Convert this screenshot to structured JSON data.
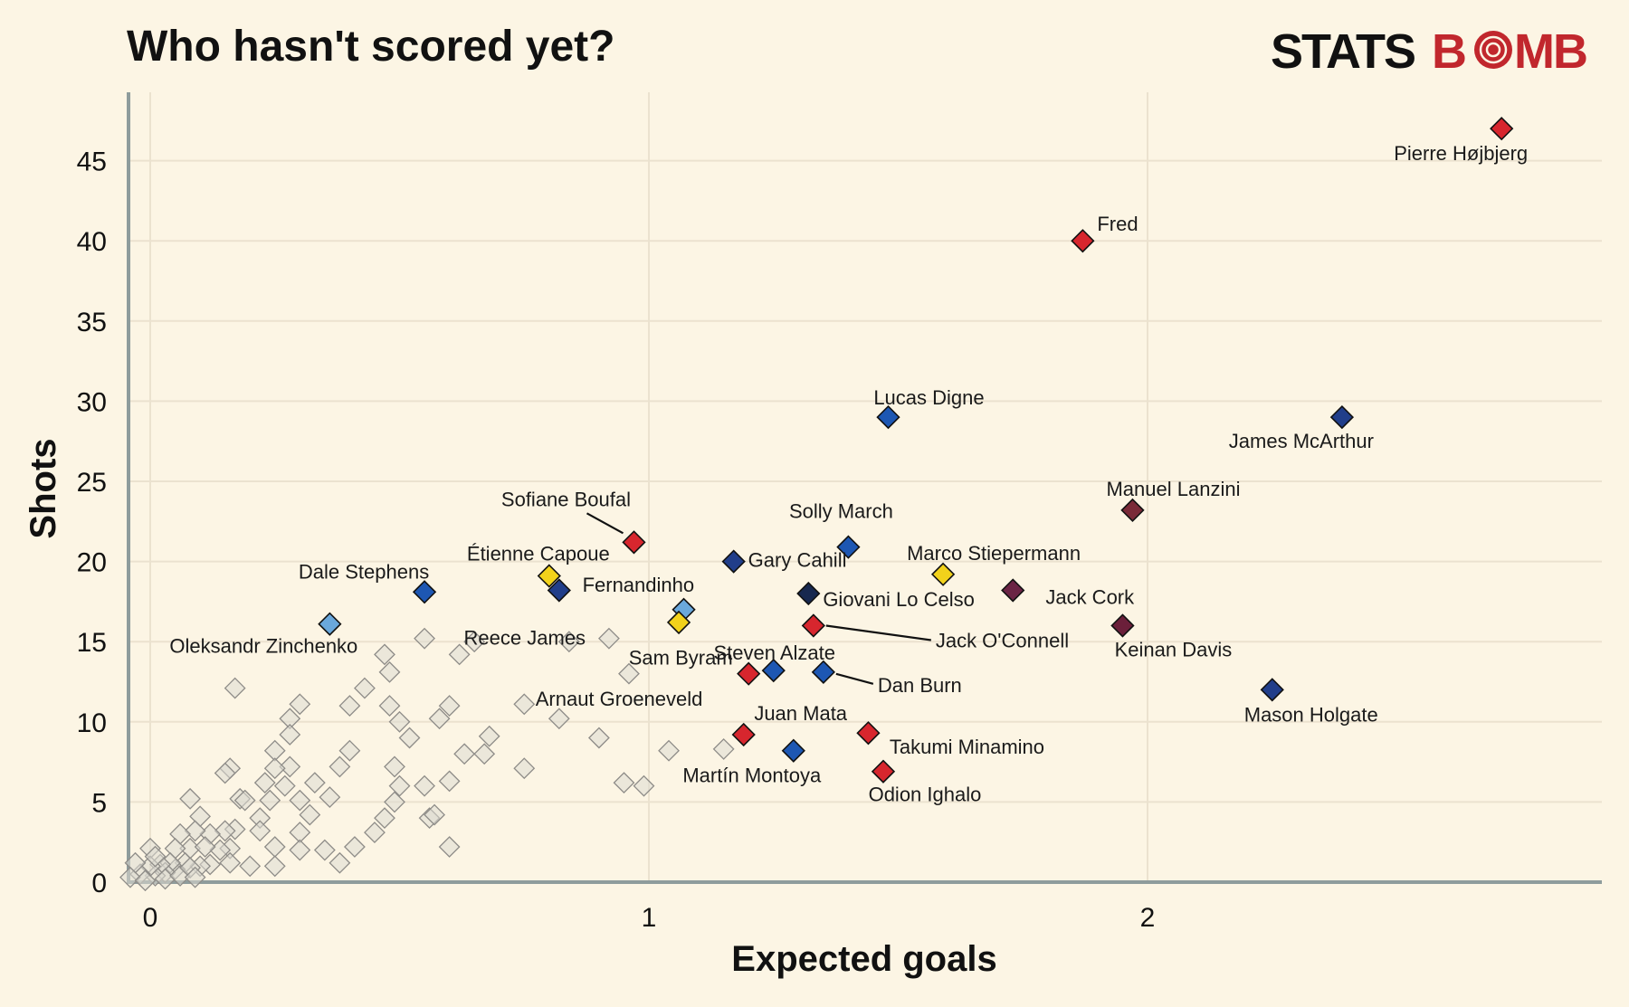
{
  "chart_data": {
    "type": "scatter",
    "title": "Who hasn't scored yet?",
    "xlabel": "Expected goals",
    "ylabel": "Shots",
    "xlim": [
      -0.05,
      2.92
    ],
    "ylim": [
      0,
      49
    ],
    "xticks": [
      0,
      1,
      2
    ],
    "yticks": [
      0,
      5,
      10,
      15,
      20,
      25,
      30,
      35,
      40,
      45
    ],
    "grid": true,
    "legend": "none",
    "labeled": [
      {
        "name": "Pierre Højbjerg",
        "x": 2.71,
        "y": 47,
        "color": "#d7262e"
      },
      {
        "name": "Fred",
        "x": 1.87,
        "y": 40,
        "color": "#d7262e"
      },
      {
        "name": "Lucas Digne",
        "x": 1.48,
        "y": 29,
        "color": "#1d57b3"
      },
      {
        "name": "James McArthur",
        "x": 2.39,
        "y": 29,
        "color": "#213e8a"
      },
      {
        "name": "Manuel Lanzini",
        "x": 1.97,
        "y": 23.2,
        "color": "#7a2a38"
      },
      {
        "name": "Sofiane Boufal",
        "x": 0.97,
        "y": 21.2,
        "color": "#d7262e"
      },
      {
        "name": "Gary Cahill",
        "x": 1.17,
        "y": 20,
        "color": "#213e8a"
      },
      {
        "name": "Solly March",
        "x": 1.4,
        "y": 20.9,
        "color": "#1d57b3"
      },
      {
        "name": "Marco Stiepermann",
        "x": 1.59,
        "y": 19.2,
        "color": "#f2d21b"
      },
      {
        "name": "Étienne Capoue",
        "x": 0.8,
        "y": 19.1,
        "color": "#f2d21b"
      },
      {
        "name": "Dale Stephens",
        "x": 0.55,
        "y": 18.1,
        "color": "#1d57b3"
      },
      {
        "name": "Reece James",
        "x": 0.82,
        "y": 18.2,
        "color": "#213e8a"
      },
      {
        "name": "Fernandinho",
        "x": 1.07,
        "y": 17,
        "color": "#6aa8dc"
      },
      {
        "name": "Giovani Lo Celso",
        "x": 1.32,
        "y": 18,
        "color": "#17284f"
      },
      {
        "name": "Jack Cork",
        "x": 1.73,
        "y": 18.2,
        "color": "#6b2445"
      },
      {
        "name": "Oleksandr Zinchenko",
        "x": 0.36,
        "y": 16.1,
        "color": "#6aa8dc"
      },
      {
        "name": "Keinan Davis",
        "x": 1.95,
        "y": 16,
        "color": "#6b1f3a"
      },
      {
        "name": "Jack O'Connell",
        "x": 1.33,
        "y": 16,
        "color": "#d7262e"
      },
      {
        "name": "Sam Byram",
        "x": 1.2,
        "y": 13,
        "color": "#d7262e"
      },
      {
        "name": "Steven Alzate",
        "x": 1.25,
        "y": 13.2,
        "color": "#1d57b3"
      },
      {
        "name": "Dan Burn",
        "x": 1.35,
        "y": 13.1,
        "color": "#1d57b3"
      },
      {
        "name": "Mason Holgate",
        "x": 2.25,
        "y": 12,
        "color": "#213e8a"
      },
      {
        "name": "Juan Mata",
        "x": 1.19,
        "y": 9.2,
        "color": "#d7262e"
      },
      {
        "name": "Arnaut Groeneveld",
        "x": 1.06,
        "y": 16.2,
        "color": "#f2d21b"
      },
      {
        "name": "Takumi Minamino",
        "x": 1.44,
        "y": 9.3,
        "color": "#d7262e"
      },
      {
        "name": "Martín Montoya",
        "x": 1.29,
        "y": 8.2,
        "color": "#1d57b3"
      },
      {
        "name": "Odion Ighalo",
        "x": 1.47,
        "y": 6.9,
        "color": "#d7262e"
      }
    ],
    "others": [
      [
        0.96,
        13
      ],
      [
        0.84,
        15
      ],
      [
        0.92,
        15.2
      ],
      [
        0.75,
        11.1
      ],
      [
        0.82,
        10.2
      ],
      [
        0.75,
        7.1
      ],
      [
        0.95,
        6.2
      ],
      [
        0.99,
        6
      ],
      [
        0.9,
        9
      ],
      [
        1.04,
        8.2
      ],
      [
        1.15,
        8.3
      ],
      [
        0.65,
        15
      ],
      [
        0.62,
        14.2
      ],
      [
        0.68,
        9.1
      ],
      [
        0.67,
        8
      ],
      [
        0.63,
        8
      ],
      [
        0.6,
        11
      ],
      [
        0.58,
        10.2
      ],
      [
        0.6,
        6.3
      ],
      [
        0.6,
        2.2
      ],
      [
        0.55,
        15.2
      ],
      [
        0.47,
        14.2
      ],
      [
        0.48,
        13.1
      ],
      [
        0.48,
        11
      ],
      [
        0.43,
        12.1
      ],
      [
        0.4,
        11
      ],
      [
        0.4,
        8.2
      ],
      [
        0.38,
        7.2
      ],
      [
        0.36,
        5.3
      ],
      [
        0.33,
        6.2
      ],
      [
        0.5,
        10
      ],
      [
        0.52,
        9
      ],
      [
        0.49,
        7.2
      ],
      [
        0.5,
        6
      ],
      [
        0.49,
        5
      ],
      [
        0.47,
        4
      ],
      [
        0.45,
        3.1
      ],
      [
        0.55,
        6
      ],
      [
        0.56,
        4
      ],
      [
        0.57,
        4.2
      ],
      [
        0.41,
        2.2
      ],
      [
        0.38,
        1.2
      ],
      [
        0.35,
        2
      ],
      [
        0.3,
        11.1
      ],
      [
        0.28,
        10.2
      ],
      [
        0.28,
        9.2
      ],
      [
        0.25,
        8.2
      ],
      [
        0.28,
        7.2
      ],
      [
        0.3,
        5.1
      ],
      [
        0.32,
        4.2
      ],
      [
        0.3,
        3.1
      ],
      [
        0.3,
        2
      ],
      [
        0.25,
        7.1
      ],
      [
        0.23,
        6.2
      ],
      [
        0.27,
        6
      ],
      [
        0.24,
        5.1
      ],
      [
        0.22,
        4
      ],
      [
        0.22,
        3.2
      ],
      [
        0.25,
        2.2
      ],
      [
        0.25,
        1
      ],
      [
        0.2,
        1
      ],
      [
        0.17,
        12.1
      ],
      [
        0.16,
        7.1
      ],
      [
        0.15,
        6.8
      ],
      [
        0.18,
        5.2
      ],
      [
        0.19,
        5.1
      ],
      [
        0.17,
        3.3
      ],
      [
        0.16,
        2.1
      ],
      [
        0.16,
        1.2
      ],
      [
        0.15,
        3.2
      ],
      [
        0.14,
        2
      ],
      [
        0.12,
        3
      ],
      [
        0.1,
        4.1
      ],
      [
        0.09,
        3.2
      ],
      [
        0.08,
        5.2
      ],
      [
        0.08,
        2.1
      ],
      [
        0.11,
        2.2
      ],
      [
        0.12,
        1.1
      ],
      [
        0.1,
        1
      ],
      [
        0.06,
        3
      ],
      [
        0.05,
        2.1
      ],
      [
        0.07,
        1.2
      ],
      [
        0.05,
        0.8
      ],
      [
        0.04,
        1.2
      ],
      [
        0.03,
        0.6
      ],
      [
        0.02,
        1.1
      ],
      [
        0.01,
        0.4
      ],
      [
        0.0,
        2.1
      ],
      [
        0.0,
        1
      ],
      [
        -0.02,
        0.5
      ],
      [
        -0.03,
        1.2
      ],
      [
        -0.04,
        0.3
      ],
      [
        0.03,
        0.2
      ],
      [
        0.06,
        0.4
      ],
      [
        0.08,
        0.9
      ],
      [
        0.09,
        0.3
      ],
      [
        -0.01,
        0.1
      ],
      [
        0.01,
        1.6
      ]
    ]
  },
  "brand": {
    "part1": "STATS",
    "part2": "B",
    "part3": "MB"
  }
}
